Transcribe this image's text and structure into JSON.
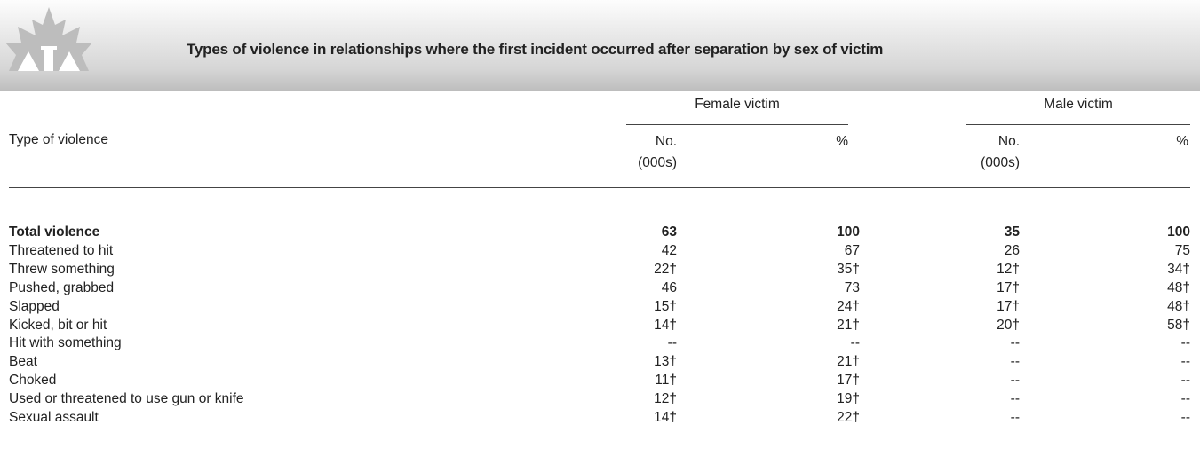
{
  "header": {
    "title": "Types of violence in relationships where the first incident occurred after separation by sex of victim"
  },
  "table": {
    "stub_header": "Type of violence",
    "groups": [
      "Female victim",
      "Male victim"
    ],
    "subheaders": [
      [
        "No.",
        "(000s)"
      ],
      [
        "%"
      ],
      [
        "No.",
        "(000s)"
      ],
      [
        "%"
      ]
    ],
    "rows": [
      [
        "Total violence",
        "63",
        "100",
        "35",
        "100"
      ],
      [
        "Threatened to hit",
        "42",
        "67",
        "26",
        "75"
      ],
      [
        "Threw something",
        "22†",
        "35†",
        "12†",
        "34†"
      ],
      [
        "Pushed, grabbed",
        "46",
        "73",
        "17†",
        "48†"
      ],
      [
        "Slapped",
        "15†",
        "24†",
        "17†",
        "48†"
      ],
      [
        "Kicked, bit or hit",
        "14†",
        "21†",
        "20†",
        "58†"
      ],
      [
        "Hit with something",
        "--",
        "--",
        "--",
        "--"
      ],
      [
        "Beat",
        "13†",
        "21†",
        "--",
        "--"
      ],
      [
        "Choked",
        "11†",
        "17†",
        "--",
        "--"
      ],
      [
        "Used or threatened to use gun or knife",
        "12†",
        "19†",
        "--",
        "--"
      ],
      [
        "Sexual assault",
        "14†",
        "22†",
        "--",
        "--"
      ]
    ]
  }
}
